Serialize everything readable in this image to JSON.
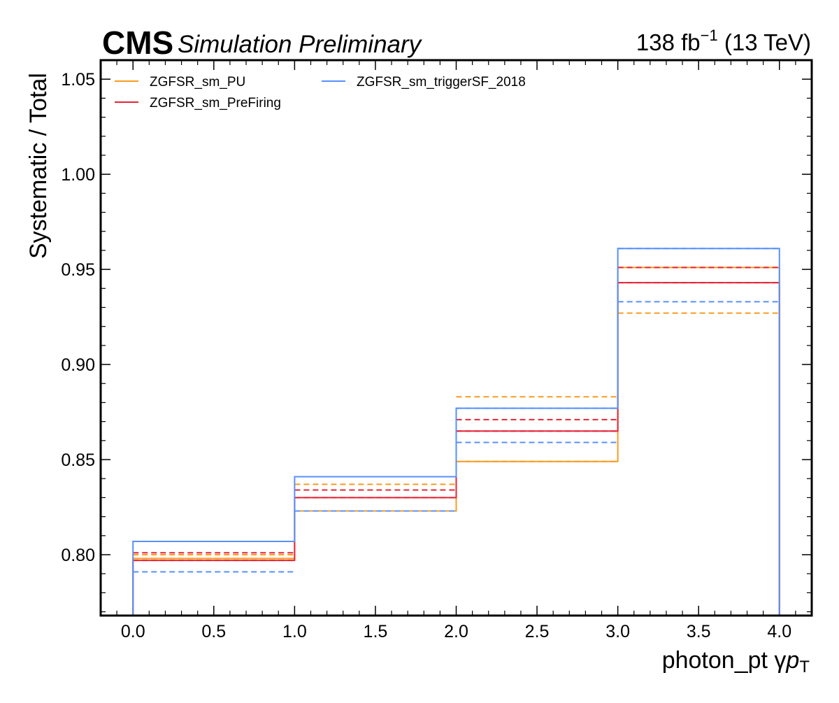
{
  "header": {
    "cms": "CMS",
    "subtitle": "Simulation Preliminary",
    "lumi_value": "138 fb",
    "lumi_exp": "−1",
    "lumi_energy": " (13 TeV)"
  },
  "chart_data": {
    "type": "line",
    "xlabel": "photon_pt   γ",
    "xlabel_var": "p",
    "xlabel_sub": "T",
    "ylabel": "Systematic / Total",
    "xlim": [
      -0.2,
      4.2
    ],
    "ylim": [
      0.768,
      1.06
    ],
    "xticks": [
      "0.0",
      "0.5",
      "1.0",
      "1.5",
      "2.0",
      "2.5",
      "3.0",
      "3.5",
      "4.0"
    ],
    "yticks": [
      "0.80",
      "0.85",
      "0.90",
      "0.95",
      "1.00",
      "1.05"
    ],
    "bin_edges": [
      0,
      1,
      2,
      3,
      4
    ],
    "legend_position": "top-left",
    "series": [
      {
        "name": "ZGFSR_sm_PU",
        "color": "#f89c20",
        "nominal": [
          0.798,
          0.823,
          0.849,
          0.951
        ],
        "up": [
          0.8,
          0.837,
          0.883,
          0.951
        ],
        "down": [
          0.798,
          0.823,
          0.849,
          0.927
        ]
      },
      {
        "name": "ZGFSR_sm_PreFiring",
        "color": "#e42536",
        "nominal": [
          0.797,
          0.83,
          0.865,
          0.943
        ],
        "up": [
          0.801,
          0.834,
          0.871,
          0.951
        ],
        "down": [
          0.797,
          0.83,
          0.865,
          0.943
        ]
      },
      {
        "name": "ZGFSR_sm_triggerSF_2018",
        "color": "#5790fc",
        "nominal": [
          0.807,
          0.841,
          0.877,
          0.961
        ],
        "up": [
          0.807,
          0.841,
          0.877,
          0.961
        ],
        "down": [
          0.791,
          0.823,
          0.859,
          0.933
        ]
      }
    ]
  }
}
